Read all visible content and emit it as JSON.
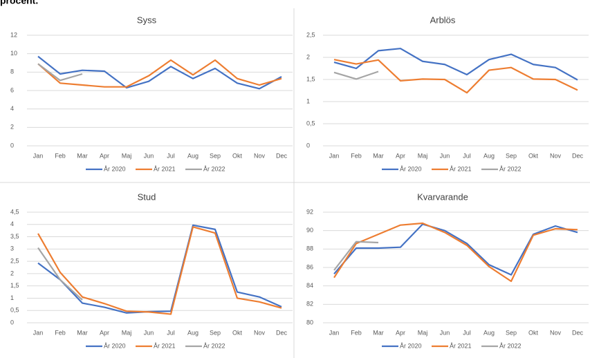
{
  "heading": "procent.",
  "chart_data": [
    {
      "type": "line",
      "title": "Syss",
      "categories": [
        "Jan",
        "Feb",
        "Mar",
        "Apr",
        "Maj",
        "Jun",
        "Jul",
        "Aug",
        "Sep",
        "Okt",
        "Nov",
        "Dec"
      ],
      "ylim": [
        0,
        12
      ],
      "yticks": [
        0,
        2,
        4,
        6,
        8,
        10,
        12
      ],
      "grid": true,
      "series": [
        {
          "name": "År 2020",
          "color": "#4472c4",
          "values": [
            9.7,
            7.8,
            8.2,
            8.1,
            6.3,
            7.0,
            8.6,
            7.3,
            8.4,
            6.8,
            6.2,
            7.5
          ]
        },
        {
          "name": "År 2021",
          "color": "#ed7d31",
          "values": [
            8.9,
            6.8,
            6.6,
            6.4,
            6.4,
            7.6,
            9.3,
            7.7,
            9.3,
            7.3,
            6.6,
            7.3
          ]
        },
        {
          "name": "År 2022",
          "color": "#a5a5a5",
          "values": [
            8.9,
            7.1,
            7.8,
            null,
            null,
            null,
            null,
            null,
            null,
            null,
            null,
            null
          ]
        }
      ]
    },
    {
      "type": "line",
      "title": "Arblös",
      "categories": [
        "Jan",
        "Feb",
        "Mar",
        "Apr",
        "Maj",
        "Jun",
        "Jul",
        "Aug",
        "Sep",
        "Okt",
        "Nov",
        "Dec"
      ],
      "ylim": [
        0,
        2.5
      ],
      "yticks": [
        0,
        {
          "value": 0.5,
          "label": "0,5"
        },
        1,
        {
          "value": 1.5,
          "label": "1,5"
        },
        2,
        {
          "value": 2.5,
          "label": "2,5"
        }
      ],
      "grid": true,
      "series": [
        {
          "name": "År 2020",
          "color": "#4472c4",
          "values": [
            1.89,
            1.75,
            2.15,
            2.2,
            1.91,
            1.84,
            1.61,
            1.95,
            2.07,
            1.84,
            1.77,
            1.49
          ]
        },
        {
          "name": "År 2021",
          "color": "#ed7d31",
          "values": [
            1.95,
            1.85,
            1.94,
            1.47,
            1.51,
            1.5,
            1.2,
            1.71,
            1.77,
            1.51,
            1.5,
            1.26
          ]
        },
        {
          "name": "År 2022",
          "color": "#a5a5a5",
          "values": [
            1.66,
            1.51,
            1.68,
            null,
            null,
            null,
            null,
            null,
            null,
            null,
            null,
            null
          ]
        }
      ]
    },
    {
      "type": "line",
      "title": "Stud",
      "categories": [
        "Jan",
        "Feb",
        "Mar",
        "Apr",
        "Maj",
        "Jun",
        "Jul",
        "Aug",
        "Sep",
        "Okt",
        "Nov",
        "Dec"
      ],
      "ylim": [
        0,
        4.5
      ],
      "yticks": [
        0,
        {
          "value": 0.5,
          "label": "0,5"
        },
        1,
        {
          "value": 1.5,
          "label": "1,5"
        },
        2,
        {
          "value": 2.5,
          "label": "2,5"
        },
        3,
        {
          "value": 3.5,
          "label": "3,5"
        },
        4,
        {
          "value": 4.5,
          "label": "4,5"
        }
      ],
      "grid": true,
      "series": [
        {
          "name": "År 2020",
          "color": "#4472c4",
          "values": [
            2.43,
            1.75,
            0.8,
            0.63,
            0.4,
            0.45,
            0.47,
            3.97,
            3.8,
            1.25,
            1.05,
            0.65
          ]
        },
        {
          "name": "År 2021",
          "color": "#ed7d31",
          "values": [
            3.63,
            2.05,
            1.05,
            0.78,
            0.47,
            0.44,
            0.35,
            3.9,
            3.65,
            1.0,
            0.85,
            0.6
          ]
        },
        {
          "name": "År 2022",
          "color": "#a5a5a5",
          "values": [
            3.05,
            1.75,
            0.93,
            null,
            null,
            null,
            null,
            null,
            null,
            null,
            null,
            null
          ]
        }
      ]
    },
    {
      "type": "line",
      "title": "Kvarvarande",
      "categories": [
        "Jan",
        "Feb",
        "Mar",
        "Apr",
        "Maj",
        "Jun",
        "Jul",
        "Aug",
        "Sep",
        "Okt",
        "Nov",
        "Dec"
      ],
      "ylim": [
        80,
        92
      ],
      "yticks": [
        80,
        82,
        84,
        86,
        88,
        90,
        92
      ],
      "grid": true,
      "series": [
        {
          "name": "År 2020",
          "color": "#4472c4",
          "values": [
            85.3,
            88.1,
            88.1,
            88.2,
            90.7,
            90.0,
            88.6,
            86.3,
            85.2,
            89.6,
            90.5,
            89.8
          ]
        },
        {
          "name": "År 2021",
          "color": "#ed7d31",
          "values": [
            84.9,
            88.6,
            89.6,
            90.6,
            90.8,
            89.8,
            88.4,
            86.1,
            84.5,
            89.5,
            90.2,
            90.1
          ]
        },
        {
          "name": "År 2022",
          "color": "#a5a5a5",
          "values": [
            85.7,
            88.8,
            88.7,
            null,
            null,
            null,
            null,
            null,
            null,
            null,
            null,
            null
          ]
        }
      ]
    }
  ]
}
